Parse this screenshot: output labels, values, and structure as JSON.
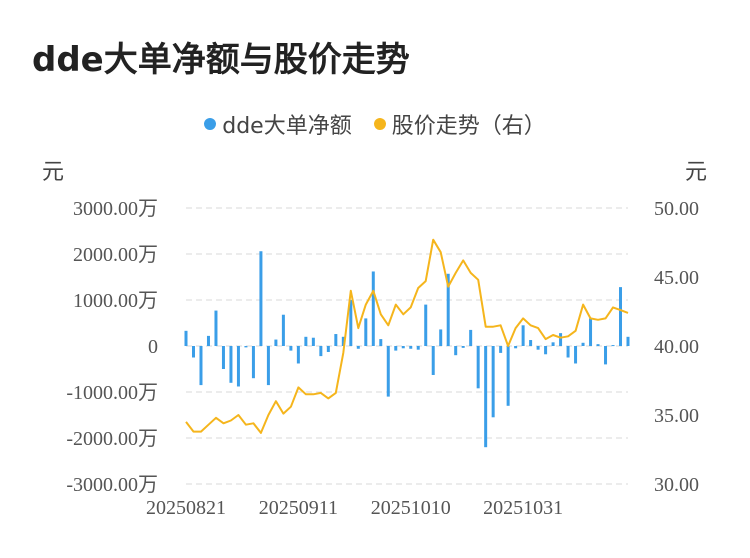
{
  "title": "dde大单净额与股价走势",
  "legend": [
    {
      "label": "dde大单净额",
      "color": "#3a9ee8"
    },
    {
      "label": "股价走势（右）",
      "color": "#f5b51c"
    }
  ],
  "left_unit": "元",
  "right_unit": "元",
  "chart_data": {
    "type": "bar+line",
    "title": "dde大单净额与股价走势",
    "left_axis": {
      "unit": "元",
      "ticks": [
        "3000.00万",
        "2000.00万",
        "1000.00万",
        "0",
        "-1000.00万",
        "-2000.00万",
        "-3000.00万"
      ],
      "range": [
        -3000,
        3000
      ]
    },
    "right_axis": {
      "unit": "元",
      "ticks": [
        "50.00",
        "45.00",
        "40.00",
        "35.00",
        "30.00"
      ],
      "range": [
        30,
        50
      ]
    },
    "x_tick_labels": [
      "20250821",
      "20250911",
      "20251010",
      "20251031"
    ],
    "x_tick_indices": [
      0,
      15,
      30,
      45
    ],
    "grid": true,
    "legend_position": "top-center",
    "series": [
      {
        "name": "dde大单净额",
        "type": "bar",
        "axis": "left",
        "color": "#3a9ee8",
        "values": [
          330,
          -250,
          -850,
          220,
          770,
          -500,
          -800,
          -880,
          -30,
          -700,
          2060,
          -850,
          140,
          680,
          -100,
          -380,
          200,
          180,
          -220,
          -130,
          260,
          200,
          1000,
          -60,
          600,
          1620,
          150,
          -1100,
          -100,
          -50,
          -60,
          -80,
          900,
          -630,
          360,
          1570,
          -200,
          -40,
          350,
          -920,
          -2200,
          -1550,
          -150,
          -1300,
          -50,
          450,
          130,
          -80,
          -180,
          80,
          280,
          -250,
          -380,
          70,
          600,
          40,
          -400,
          20,
          1280,
          200
        ]
      },
      {
        "name": "股价走势（右）",
        "type": "line",
        "axis": "right",
        "color": "#f5b51c",
        "values": [
          34.5,
          33.8,
          33.8,
          34.3,
          34.8,
          34.4,
          34.6,
          35.0,
          34.3,
          34.4,
          33.7,
          35.0,
          36.0,
          35.1,
          35.6,
          37.0,
          36.5,
          36.5,
          36.6,
          36.2,
          36.6,
          39.5,
          44.0,
          41.3,
          43.0,
          44.0,
          42.3,
          41.5,
          43.0,
          42.3,
          42.8,
          44.2,
          44.7,
          47.7,
          46.8,
          44.3,
          45.3,
          46.2,
          45.3,
          44.8,
          41.4,
          41.4,
          41.5,
          40.0,
          41.3,
          42.0,
          41.5,
          41.3,
          40.5,
          40.8,
          40.6,
          40.7,
          41.1,
          43.0,
          42.0,
          41.9,
          42.0,
          42.8,
          42.6,
          42.4
        ]
      }
    ]
  }
}
